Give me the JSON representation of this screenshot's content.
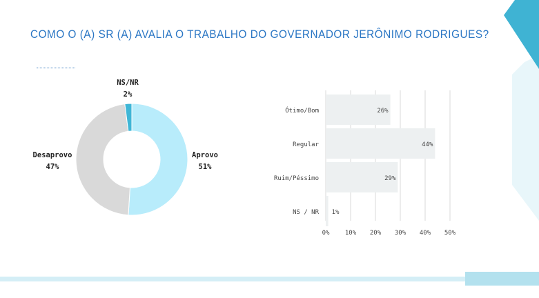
{
  "title": "COMO O (A) SR (A) AVALIA O TRABALHO DO GOVERNADOR JERÔNIMO RODRIGUES?",
  "colors": {
    "title": "#2a76c4",
    "aprovo": "#b8ecfb",
    "desaprovo": "#d9d9d9",
    "nsnr": "#3fb6d6",
    "bar": "#edf0f1",
    "grid": "#d9d9d9",
    "corner_dark": "#3fb3d3",
    "corner_light": "#e8f6fa"
  },
  "donut_labels": {
    "aprovo": {
      "name": "Aprovo",
      "pct": "51%"
    },
    "desaprovo": {
      "name": "Desaprovo",
      "pct": "47%"
    },
    "nsnr": {
      "name": "NS/NR",
      "pct": "2%"
    }
  },
  "chart_data": [
    {
      "type": "pie",
      "categories": [
        "Aprovo",
        "Desaprovo",
        "NS/NR"
      ],
      "values": [
        51,
        47,
        2
      ],
      "value_labels": [
        "51%",
        "47%",
        "2%"
      ]
    },
    {
      "type": "bar",
      "orientation": "horizontal",
      "categories": [
        "Ótimo/Bom",
        "Regular",
        "Ruim/Péssimo",
        "NS / NR"
      ],
      "values": [
        26,
        44,
        29,
        1
      ],
      "value_labels": [
        "26%",
        "44%",
        "29%",
        "1%"
      ],
      "x_ticks": [
        "0%",
        "10%",
        "20%",
        "30%",
        "40%",
        "50%"
      ],
      "xlim": [
        0,
        50
      ],
      "grid": true
    }
  ]
}
